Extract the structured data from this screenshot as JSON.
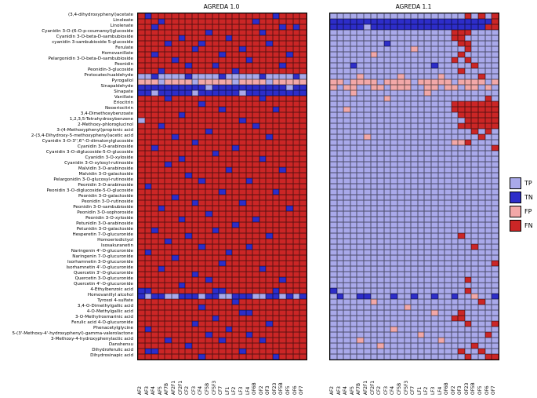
{
  "figure": {
    "description": "Confusion-category heatmaps comparing AGREDA 1.0 and AGREDA 1.1 predictions per metabolite (rows) and sample (columns)"
  },
  "code_colors": {
    "P": "#a9a9ea",
    "N": "#2d2dc9",
    "F": "#f2a8a8",
    "X": "#cb2626"
  },
  "legend": {
    "entries": [
      {
        "label": "TP",
        "code": "P",
        "color": "#a9a9ea"
      },
      {
        "label": "TN",
        "code": "N",
        "color": "#2d2dc9"
      },
      {
        "label": "FP",
        "code": "F",
        "color": "#f2a8a8"
      },
      {
        "label": "FN",
        "code": "X",
        "color": "#cb2626"
      }
    ]
  },
  "chart_data": {
    "type": "heatmap",
    "legend_position": "right",
    "categories_legend": [
      "TP",
      "TN",
      "FP",
      "FN"
    ],
    "rows": [
      "(3,4-dihydroxyphenyl)acetate",
      "Linoleate",
      "Linolenate",
      "Cyanidin 3-O-(6-O-p-coumaroyl)glucoside",
      "Cyanidin 3-O-beta-D-sambubioside",
      "cyanidin 3-sambubioside 5-glucoside",
      "Ferulate",
      "Homovanillate",
      "Pelargonidin 3-O-beta-D-sambubioside",
      "Peonidin",
      "Peonidin-3-glucoside",
      "Protocatechualdehyde",
      "Pyrogallol",
      "Sinapaldehyde",
      "Sinapate",
      "Vanillate",
      "Eriocitrin",
      "Neoeriocitrin",
      "3,4-Dimethoxybenzoate",
      "1,2,3,5-Tetrahydroxybenzene",
      "2-Methoxy-phloroglucinol",
      "3-(4-Methoxyphenyl)propionic acid",
      "2-(3,4-Dihydroxy-5-methoxyphenyl)acetic acid",
      "Cyanidin 3-O-3'',6''-O-dimalonylglucoside",
      "Cyanidin 3-O-arabinoside",
      "Cyanidin 3-O-diglucoside-5-O-glucoside",
      "Cyanidin 3-O-xyloside",
      "Cyanidin 3-O-xylosyl-rutinoside",
      "Malvidin 3-O-arabinoside",
      "Malvidin 3-O-galactoside",
      "Pelargonidin 3-O-glucosyl-rutinoside",
      "Peonidin 3-O-arabinoside",
      "Peonidin 3-O-diglucoside-5-O-glucoside",
      "Peonidin 3-O-galactoside",
      "Peonidin 3-O-rutinoside",
      "Peonidin 3-O-sambubioside",
      "Peonidin 3-O-sophoroside",
      "Peonidin 3-O-xyloside",
      "Petunidin 3-O-arabinoside",
      "Petunidin 3-O-galactoside",
      "Hesperetin 7-O-glucuronide",
      "Homoeriodictyol",
      "Isosakuranetin",
      "Naringenin 4'-O-glucuronide",
      "Naringenin 7-O-glucuronide",
      "Isorhamnetin 3-O-glucuronide",
      "Isorhamnetin 4'-O-glucuronide",
      "Quercetin 3'-O-glucuronide",
      "Quercetin 3-O-glucuronide",
      "Quercetin 4'-O-glucuronide",
      "4-Ethylbenzoic acid",
      "Homovanillyl alcohol",
      "Tyrosol 4-sulfate",
      "3,4-O-Dimethylgallic acid",
      "4-O-Methylgallic acid",
      "3-O-Methylrosmarinic acid",
      "Ferulic acid 4-O-glucuronide",
      "Phenacetylglycine",
      "5-(3'-Methoxy-4'-hydroxyphenyl)-gamma-valerolactone",
      "3-Methoxy-4-hydroxyphenylactic acid",
      "Danshensu",
      "Dihydroferulic acid",
      "Dihydrosinapic acid"
    ],
    "columns": [
      "AF2",
      "AF3",
      "AF4",
      "AF5",
      "AF7B",
      "AF2F1",
      "CF2F1",
      "CF2",
      "CF3",
      "CF4",
      "CF5B",
      "CF5F3",
      "CF7",
      "LF1",
      "LF2",
      "LF3",
      "LF4",
      "OF6B",
      "OF2",
      "OF3",
      "OF23",
      "OF5B",
      "OF5",
      "OF6",
      "OF7"
    ],
    "panels": [
      {
        "title": "AGREDA 1.0",
        "cells": [
          "XNXXXXXXXXXXXXXXXXXXNXXXX",
          "XXXNXXXXXXXXXXXXXNXXXXXXX",
          "XXNXXXXXXXXXXXXXXXXXXNXNX",
          "XXXXXXXXXXNXXXXXXXNXXXXXX",
          "XXXXXXNXXXXXXNXXXXXXXXXXX",
          "XXXXNXXXXNXXXXXXXXXNXXXXX",
          "XXXXXXXXNXXXXXXNXXXXXXXXX",
          "XXNXXXXXXXXXNXXXXXXXXXNXX",
          "XXXXXNXXXXXXXXXXNXXXXXXXX",
          "XXXXXXXNXXXNXXXXXXXXXNXXX",
          "XXXNXXXXXXXXXXNXXXXXXXXXX",
          "PPNPPPPNPPPPNPPPPPNPPPPNP",
          "FFFPFFFFPFFFFFPFFFFPFFFFF",
          "NNNNNNNNNNPNNNNNNNNNNNPNN",
          "NNPNNNNNPNNNNNNPNNNNNNNNN",
          "XXXXNXXXXXXXXXXXXXNXXXXXX",
          "XXXXXXXXXNXXXXXXXXXXXXXXX",
          "XXXXXXXXXXXXNXXXXXXXNXXXX",
          "XXXXXXNXXXXXXXXXXXXXXXXXX",
          "PXXXXXXXXXXXXXXNXXXXXXXXX",
          "XXXNXXXXXXXXXXXXXNXXXXXXX",
          "XXXXXXXXXXNXXXXXXXXXXXXXX",
          "XXXXXNXXXXXXXXXXXXXNXXXXX",
          "XXXXXXXXNXXXXXXXXXXXXXXXX",
          "XXNXXXXXXXXXXXNXXXXXXXXXX",
          "XXXXXXXXXXXNXXXXXXXXXXXXX",
          "XXXXXXNXXXXXXXXXXXNXXXXXX",
          "XXXXNXXXXXXXXXXXXXXXXXXXX",
          "XXXXXXXXXXXXXNXXXXXXXNXXX",
          "XXXXXXXNXXXXXXXXXXXXXXXXX",
          "XXXXXXXXXNXXXXXXNXXXXXXXX",
          "XNXXXXXXXXXXXXXXXXXXXXXXX",
          "XXXXXXXXXXXXNXXXXXXXNXXXX",
          "XXXXXNXXXXXXXXXXXXXXXXXXX",
          "XXXXXXXXNXXXXXXNXXXXXXXXX",
          "XXXNXXXXXXXXXXXXXXXXXXNXX",
          "XXXXXXXXXXNXXXXXXXXXXXXXX",
          "XXXXXXNXXXXXXXXXXNXXXXXXX",
          "XXXXXXXXXXXXXXNXXXXXXXXXX",
          "XXNXXXXXXXXNXXXXXXXXXXXXX",
          "XXXXXXXNXXXXXXXXXXXNXXXXX",
          "XXXXNXXXXXXXXXXXXXXXXXXXX",
          "XXXXXXXXXNXXXXXXNXXXXXXXX",
          "XNXXXXXXXXXXXNXXXXXXXXXXX",
          "XXXXXNXXXXXXXXXXXXXXXXXXX",
          "XXXXXXXXXXXXNXXXXXXXXXXXX",
          "XXXNXXXXXXXXXXXXXXNXXXXXX",
          "XXXXXXXXNXXXXXXXXXXXXXXXX",
          "XXXXXXXXXXNXXXXXXXXXXNXXX",
          "XXXXXXNXXXXXXXXXXXXXXXXXX",
          "NNXXXXXXXXXNNXXXXXXXNXXXX",
          "NPNNPPNNNPNNPPNNNPPNNPNPN",
          "XXXXXXXXXXXXXXNXXXXXXXXXX",
          "XXXXXXXXXNXXXXXXXXXXXXXXX",
          "XXXXXXXXXXXXXXXNNXXXXXXXX",
          "XXXXXXXXXXXNXXXXXXXXXXXXX",
          "XXXXXXXXNXXXXXXXXXXNXXXXX",
          "XNXXXXXXXXXXXNXXXXXXXXXXX",
          "XXXXXXXXXXNXXXXXNXXXXXXXX",
          "XXXXNXXXXXXXNXXXXXNXXXXXX",
          "XXXXXXXNXXXXXXXXXXXXXXXXX",
          "XNNXXXXXXXXXXXXNXXXXXXXXX",
          "XXXXXXXXXNXXXXXXXXXXNXXXX"
        ]
      },
      {
        "title": "AGREDA 1.1",
        "cells": [
          "PPPPPPPPPPPPPPPPPPPPXPXPX",
          "NNNNNNNNNNNNNNNNNNNNNNNNX",
          "NNNNNPNNNNNNNNNNNNNNNNNXX",
          "PPPPPPPPPPPPPPPPPPXXXPPPP",
          "PPPPPPPPPPPPPPPPPPXXPPPPP",
          "PPPPPPPPNPPPPPPPPPPXXPPPP",
          "PPPPPPPPPPPPFPPPPPPPXPPPP",
          "PPPPPPFPPPPPPPPPPPPXPPPPP",
          "PPPPPPPPPPPPPPPPPPXPXPPPP",
          "PPPNPPPPPPPPPPPNPPPPPXPPP",
          "PPPPPPPPPPPPPPPPPPPXPPPPP",
          "PPPPFPPPPPFPPPPPFPPPPPXPP",
          "FFPFFFFPFFFFPFFFFFPFFFFPF",
          "FPFFPPFFPFFFPPFFPFFPFFPFP",
          "PPPFPPPPPPPPPPFPPPPPPPPPP",
          "PPPPPPPPFPPPPPPPPPPPPPPXP",
          "PPPPPPPPPPPPPPPPPPXXXXXXX",
          "PPFPPPPPPPPPPPPPPPXXXXXXX",
          "PPPPPPPPPPPPPPPPPPPXXXXXX",
          "PPPPPPPPPPPPPPPPPPPPXXXXX",
          "PPPPPPPPPPPPPPPPPPPXXXXXX",
          "PPPPPPPPPPPPPPPPPPPPPXPXP",
          "PPPPPFPPPPPPPPPPPPPPPPXPP",
          "PPPPPPPPPPPPPPPPPPFFXPPPP",
          "PPPPPPPPPPPPPPPPPPPPPPPPX",
          "PPPPPPPPPPPPPPPPPPPPPPPPP",
          "PPPPPPPPPPPPPPPPPPPPPPPPP",
          "PPPPPPPPPPPPPPPPPPPPPPPPP",
          "PPPPPPPPPPPPPPPPPPPPPPPPP",
          "PPPPPPPPPPPPPPPPPPPPPPPPP",
          "PPPPPPPPPPPPPPPPPPPPPPPPP",
          "PPPPPPPPPPPPPPPPPPPPPPPPP",
          "PPPPPPPPPPPPPPPPPPPPPPPPP",
          "PPPPPPPPPPPPPPPPPPPPPPPPP",
          "PPPPPPPPPPPPPPPPPPPPPPPPP",
          "PPPPPPPPPPPPPPPPPPPPPPPPP",
          "PPPPPPPPPPPPPPPPPPPPPPPPP",
          "PPPPPPPPPPPPPPPPPPPPPPPPP",
          "PPPPPPPPPPPPPPPPPPPPPPPPP",
          "PPPPPPPPPPPPPPPPPPPPPPPPP",
          "PPPPPPPPPPPPPPPPPPPXPPPPP",
          "PPPPPPPPPPPPPPPPPPPPPPPPP",
          "PPPPPPPPPPPPPPPPPPPPPXPPP",
          "PPPPPPPPPPPPPPPPPPPPPPPPP",
          "PPPPPPPPPPPPPPPPPPPPPPPPP",
          "PPPPPPPPPPPPPPPPPPPPPPPPX",
          "PPPPPPPPPPPPPPPPPPPPPPPPP",
          "PPPPPPPPPPPPPPPPPPPPPPPPP",
          "PPPPPPPPPPPPPPPPPPPPXPPPP",
          "PPPPPPPPPPPPPPPPPPPPPPPPP",
          "NPPPPPPPPPPPPPPPPPPPXPPPP",
          "PNPPNNPPPNPPNPPNPPNPPFPPN",
          "PPPPPPFPPPPPPPPPPPPPPPXPP",
          "PPPPPPPPPPPFPPPPPPPPPPPPP",
          "PPPPPPPPPPPPPPPFPPPXPPPPP",
          "PPPPPPPPPPPPPPPPPPXXPPPPP",
          "PPPPPPPPPPPPPPPPPPPPXPPPX",
          "PPPPPPPPPFPPPPPPPPPPPPPPP",
          "PPPPPPPPPPPPPFPPPPPPPPPXP",
          "PPPPFPPPPPPPPPPPFPPPPPPPP",
          "PPPPPPPFPPPPPPPPPPPPPXPPP",
          "PPPPPPPPPPPPPPPPPPPXPPXPP",
          "PPPPPPPPPPPPPPPPPPPPXPPXX"
        ]
      }
    ]
  }
}
